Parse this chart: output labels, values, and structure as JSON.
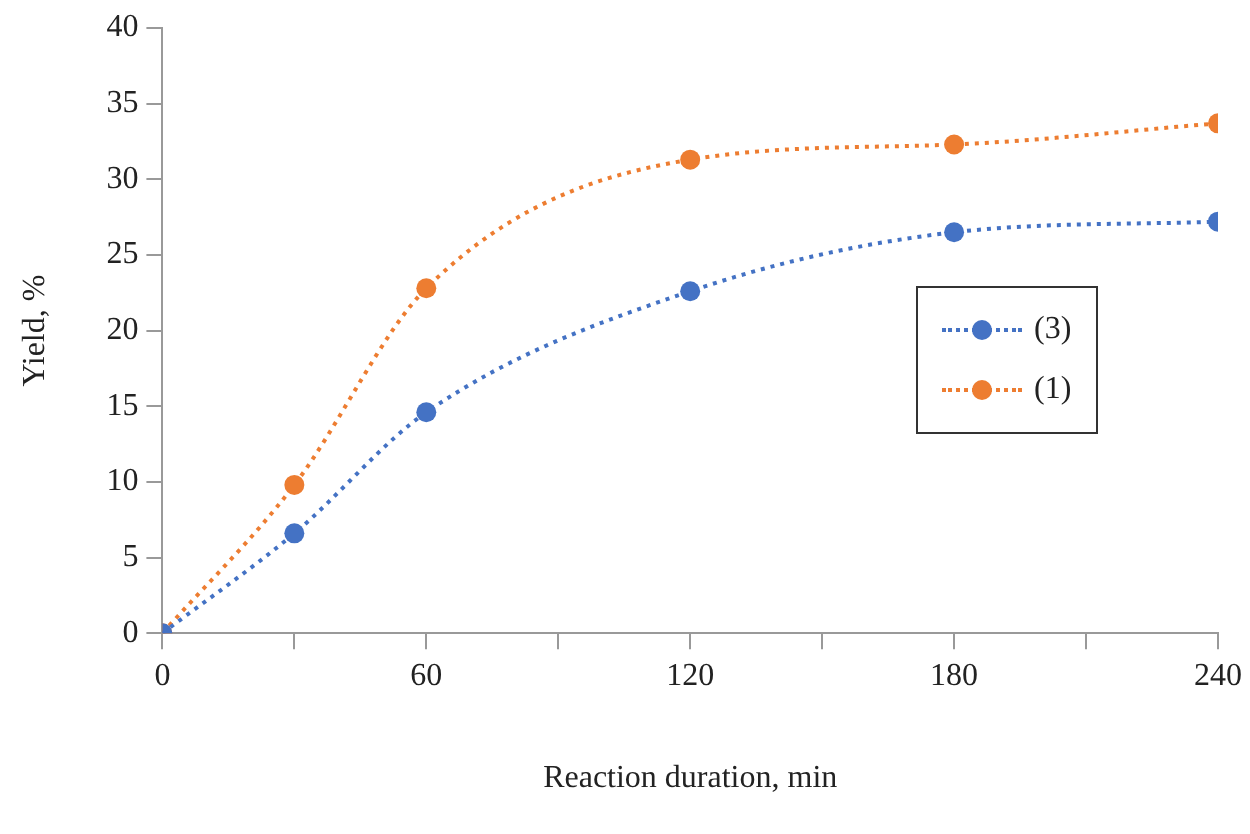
{
  "chart_data": {
    "type": "line",
    "xlabel": "Reaction duration, min",
    "ylabel": "Yield, %",
    "x": [
      0,
      30,
      60,
      120,
      180,
      240
    ],
    "series": [
      {
        "name": "(3)",
        "color": "#4472c4",
        "values": [
          0,
          6.6,
          14.6,
          22.6,
          26.5,
          27.2
        ]
      },
      {
        "name": "(1)",
        "color": "#ed7d31",
        "values": [
          0,
          9.8,
          22.8,
          31.3,
          32.3,
          33.7
        ]
      }
    ],
    "xlim": [
      0,
      240
    ],
    "xticks": [
      0,
      {
        "value": 30,
        "label": null
      },
      60,
      {
        "value": 90,
        "label": null
      },
      120,
      {
        "value": 150,
        "label": null
      },
      180,
      {
        "value": 210,
        "label": null
      },
      240
    ],
    "ylim": [
      0,
      40
    ],
    "yticks": [
      0,
      5,
      10,
      15,
      20,
      25,
      30,
      35,
      40
    ],
    "grid": false,
    "legend": "center right",
    "marker": "circle",
    "line_style": "dotted"
  }
}
